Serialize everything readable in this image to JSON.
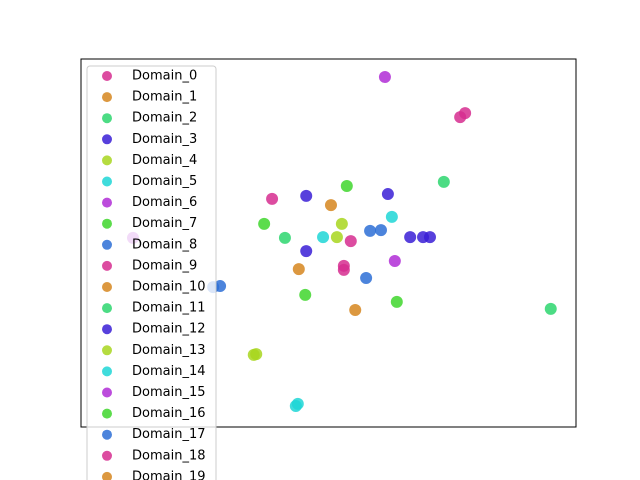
{
  "chart_data": {
    "type": "scatter",
    "legend": "upper left",
    "xlim": [
      0,
      100
    ],
    "ylim": [
      0,
      100
    ],
    "series": [
      {
        "name": "Domain_0",
        "color": "#d62d8f",
        "x": [
          76.6,
          77.6
        ],
        "y": [
          84.2,
          85.3
        ]
      },
      {
        "name": "Domain_1",
        "color": "#d6861f",
        "x": [
          50.5
        ],
        "y": [
          60.3
        ]
      },
      {
        "name": "Domain_2",
        "color": "#2dd66e",
        "x": [
          94.9
        ],
        "y": [
          32.1
        ]
      },
      {
        "name": "Domain_3",
        "color": "#3a1fd6",
        "x": [
          45.5,
          62.0
        ],
        "y": [
          62.8,
          63.3
        ]
      },
      {
        "name": "Domain_4",
        "color": "#a8d61f",
        "x": [
          51.7,
          52.7
        ],
        "y": [
          51.6,
          55.2
        ]
      },
      {
        "name": "Domain_5",
        "color": "#1fd6d6",
        "x": [
          43.4,
          43.8
        ],
        "y": [
          5.7,
          6.3
        ]
      },
      {
        "name": "Domain_6",
        "color": "#b02dd6",
        "x": [
          61.4
        ],
        "y": [
          95.1
        ]
      },
      {
        "name": "Domain_7",
        "color": "#3fd62d",
        "x": [
          53.7,
          37.0
        ],
        "y": [
          65.5,
          55.2
        ]
      },
      {
        "name": "Domain_8",
        "color": "#2d6ed6",
        "x": [
          58.4,
          60.6
        ],
        "y": [
          53.3,
          53.5
        ]
      },
      {
        "name": "Domain_9",
        "color": "#d62d8f",
        "x": [
          38.6,
          54.5
        ],
        "y": [
          62.0,
          50.5
        ]
      },
      {
        "name": "Domain_10",
        "color": "#d6861f",
        "x": [
          44.0
        ],
        "y": [
          42.9
        ]
      },
      {
        "name": "Domain_11",
        "color": "#2dd66e",
        "x": [
          73.3,
          41.2
        ],
        "y": [
          66.6,
          51.4
        ]
      },
      {
        "name": "Domain_12",
        "color": "#3a1fd6",
        "x": [
          45.5,
          66.5,
          69.1,
          70.5
        ],
        "y": [
          47.8,
          51.6,
          51.6,
          51.6
        ]
      },
      {
        "name": "Domain_13",
        "color": "#a8d61f",
        "x": [
          34.9,
          35.4
        ],
        "y": [
          19.6,
          19.8
        ]
      },
      {
        "name": "Domain_14",
        "color": "#1fd6d6",
        "x": [
          48.9,
          62.8
        ],
        "y": [
          51.6,
          57.1
        ]
      },
      {
        "name": "Domain_15",
        "color": "#b02dd6",
        "x": [
          63.4,
          10.5
        ],
        "y": [
          45.1,
          51.4
        ]
      },
      {
        "name": "Domain_16",
        "color": "#3fd62d",
        "x": [
          63.8,
          45.3
        ],
        "y": [
          34.0,
          35.9
        ]
      },
      {
        "name": "Domain_17",
        "color": "#2d6ed6",
        "x": [
          28.1,
          57.6,
          26.7
        ],
        "y": [
          38.3,
          40.5,
          38.0
        ]
      },
      {
        "name": "Domain_18",
        "color": "#d62d8f",
        "x": [
          53.1,
          53.1
        ],
        "y": [
          43.8,
          42.7
        ]
      },
      {
        "name": "Domain_19",
        "color": "#d6861f",
        "x": [
          55.4
        ],
        "y": [
          31.8
        ]
      }
    ]
  }
}
